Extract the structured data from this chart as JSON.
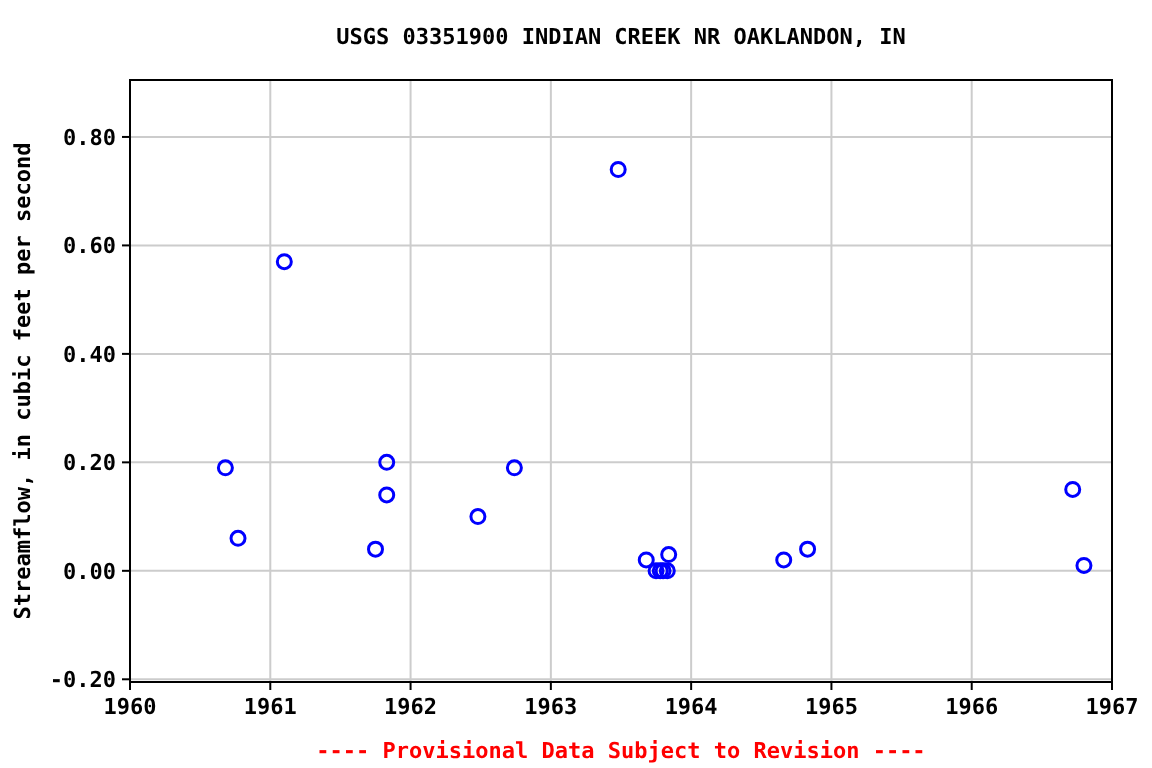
{
  "chart_data": {
    "type": "scatter",
    "title": "USGS 03351900 INDIAN CREEK NR OAKLANDON, IN",
    "ylabel": "Streamflow, in cubic feet per second",
    "annotations": [
      "---- Provisional Data Subject to Revision ----"
    ],
    "x": [
      1960.68,
      1960.77,
      1961.1,
      1961.75,
      1961.83,
      1961.83,
      1962.48,
      1962.74,
      1963.48,
      1963.68,
      1963.75,
      1963.78,
      1963.8,
      1963.83,
      1963.84,
      1964.66,
      1964.83,
      1966.72,
      1966.8
    ],
    "series": [
      {
        "color": "#0000ff",
        "values": [
          0.19,
          0.06,
          0.57,
          0.04,
          0.2,
          0.14,
          0.1,
          0.19,
          0.74,
          0.02,
          0,
          0,
          0,
          0,
          0.03,
          0.02,
          0.04,
          0.15,
          0.01
        ]
      }
    ],
    "xlim": [
      1960,
      1967
    ],
    "xticks": [
      1960,
      1961,
      1962,
      1963,
      1964,
      1965,
      1966,
      1967
    ],
    "ylim": [
      -0.205,
      0.905
    ],
    "yticks": [
      {
        "value": -0.2,
        "label": "-0.20"
      },
      {
        "value": 0,
        "label": "0.00"
      },
      {
        "value": 0.2,
        "label": "0.20"
      },
      {
        "value": 0.4,
        "label": "0.40"
      },
      {
        "value": 0.6,
        "label": "0.60"
      },
      {
        "value": 0.8,
        "label": "0.80"
      }
    ],
    "grid": true,
    "marker": "circle"
  }
}
